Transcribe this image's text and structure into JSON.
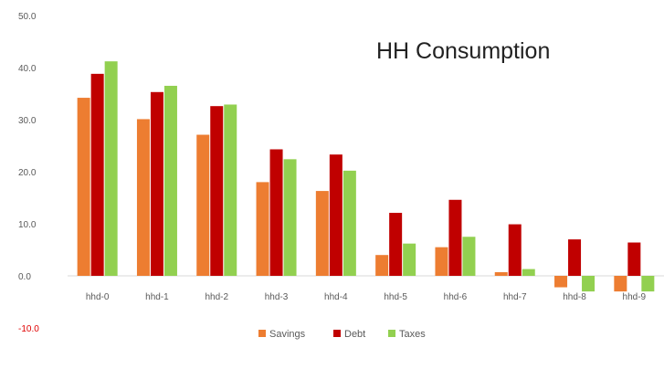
{
  "chart_data": {
    "type": "bar",
    "title": "HH Consumption",
    "xlabel": "",
    "ylabel": "",
    "categories": [
      "hhd-0",
      "hhd-1",
      "hhd-2",
      "hhd-3",
      "hhd-4",
      "hhd-5",
      "hhd-6",
      "hhd-7",
      "hhd-8",
      "hhd-9"
    ],
    "series": [
      {
        "name": "Savings",
        "color": "#ed7d31",
        "values": [
          34.2,
          30.1,
          27.1,
          18.0,
          16.3,
          4.0,
          5.5,
          0.7,
          -2.2,
          -3.0
        ]
      },
      {
        "name": "Debt",
        "color": "#c00000",
        "values": [
          38.8,
          35.3,
          32.6,
          24.3,
          23.3,
          12.1,
          14.6,
          9.9,
          7.0,
          6.4
        ]
      },
      {
        "name": "Taxes",
        "color": "#92d050",
        "values": [
          41.2,
          36.5,
          32.9,
          22.4,
          20.2,
          6.2,
          7.5,
          1.3,
          -3.0,
          -3.0
        ]
      }
    ],
    "ylim": [
      -10,
      50
    ],
    "yticks": [
      "50.0",
      "40.0",
      "30.0",
      "20.0",
      "10.0",
      "0.0",
      "-10.0"
    ],
    "grid": false,
    "legend_position": "bottom"
  }
}
